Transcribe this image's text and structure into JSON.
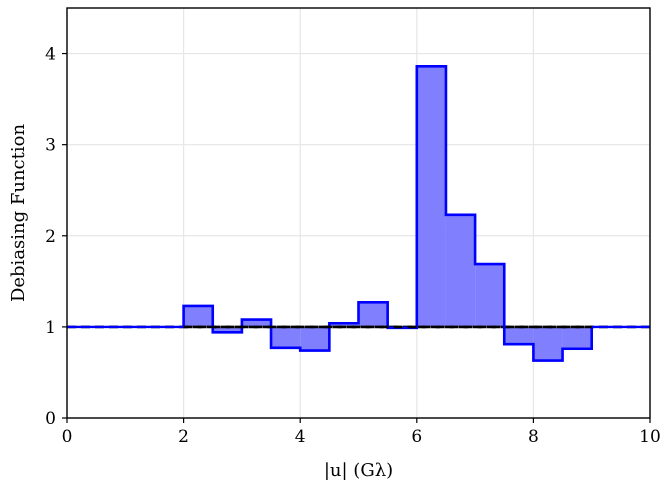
{
  "chart_data": {
    "type": "bar",
    "style": "step-histogram",
    "xlabel": "|u| (Gλ)",
    "ylabel": "Debiasing Function",
    "xlim": [
      0,
      10
    ],
    "ylim": [
      0,
      4.5
    ],
    "xticks": [
      "0",
      "2",
      "4",
      "6",
      "8",
      "10"
    ],
    "yticks": [
      "0",
      "1",
      "2",
      "3",
      "4"
    ],
    "grid": true,
    "bin_width": 0.5,
    "series": [
      {
        "values": [
          {
            "x0": 2.0,
            "x1": 2.5,
            "y": 1.23
          },
          {
            "x0": 2.5,
            "x1": 3.0,
            "y": 0.94
          },
          {
            "x0": 3.0,
            "x1": 3.5,
            "y": 1.08
          },
          {
            "x0": 3.5,
            "x1": 4.0,
            "y": 0.77
          },
          {
            "x0": 4.0,
            "x1": 4.5,
            "y": 0.74
          },
          {
            "x0": 4.5,
            "x1": 5.0,
            "y": 1.04
          },
          {
            "x0": 5.0,
            "x1": 5.5,
            "y": 1.27
          },
          {
            "x0": 5.5,
            "x1": 6.0,
            "y": 0.99
          },
          {
            "x0": 6.0,
            "x1": 6.5,
            "y": 3.86
          },
          {
            "x0": 6.5,
            "x1": 7.0,
            "y": 2.23
          },
          {
            "x0": 7.0,
            "x1": 7.5,
            "y": 1.69
          },
          {
            "x0": 7.5,
            "x1": 8.0,
            "y": 0.81
          },
          {
            "x0": 8.0,
            "x1": 8.5,
            "y": 0.63
          },
          {
            "x0": 8.5,
            "x1": 9.0,
            "y": 0.76
          }
        ],
        "color": "#0000ff",
        "fill_color": "#8080ff"
      }
    ],
    "baseline": {
      "y": 1.0,
      "style": "dashed",
      "color": "#000000"
    }
  }
}
